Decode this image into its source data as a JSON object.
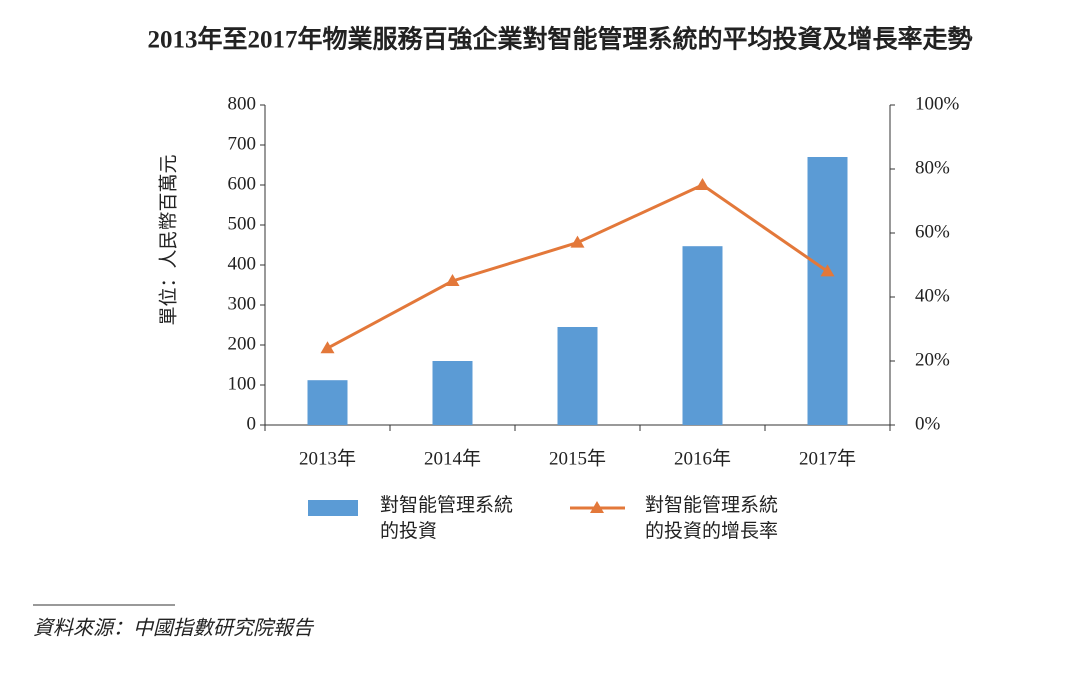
{
  "chart_data": {
    "type": "combo",
    "title": "2013年至2017年物業服務百強企業對智能管理系統的平均投資及增長率走勢",
    "y_label": "單位：人民幣百萬元",
    "source": "資料來源：中國指數研究院報告",
    "categories": [
      "2013年",
      "2014年",
      "2015年",
      "2016年",
      "2017年"
    ],
    "series": [
      {
        "name": "對智能管理系統的投資",
        "type": "bar",
        "color": "#5b9bd5",
        "values": [
          112,
          160,
          245,
          447,
          670
        ]
      },
      {
        "name": "對智能管理系統的投資的增長率",
        "type": "line",
        "axis": "y2",
        "marker": "triangle",
        "color": "#e3783a",
        "values": [
          24,
          45,
          57,
          75,
          48
        ]
      }
    ],
    "ylim": [
      0,
      800
    ],
    "yticks": [
      0,
      100,
      200,
      300,
      400,
      500,
      600,
      700,
      800
    ],
    "y2lim": [
      0,
      100
    ],
    "y2ticks": [
      {
        "value": 0,
        "label": "0%"
      },
      {
        "value": 20,
        "label": "20%"
      },
      {
        "value": 40,
        "label": "40%"
      },
      {
        "value": 60,
        "label": "60%"
      },
      {
        "value": 80,
        "label": "80%"
      },
      {
        "value": 100,
        "label": "100%"
      }
    ]
  }
}
